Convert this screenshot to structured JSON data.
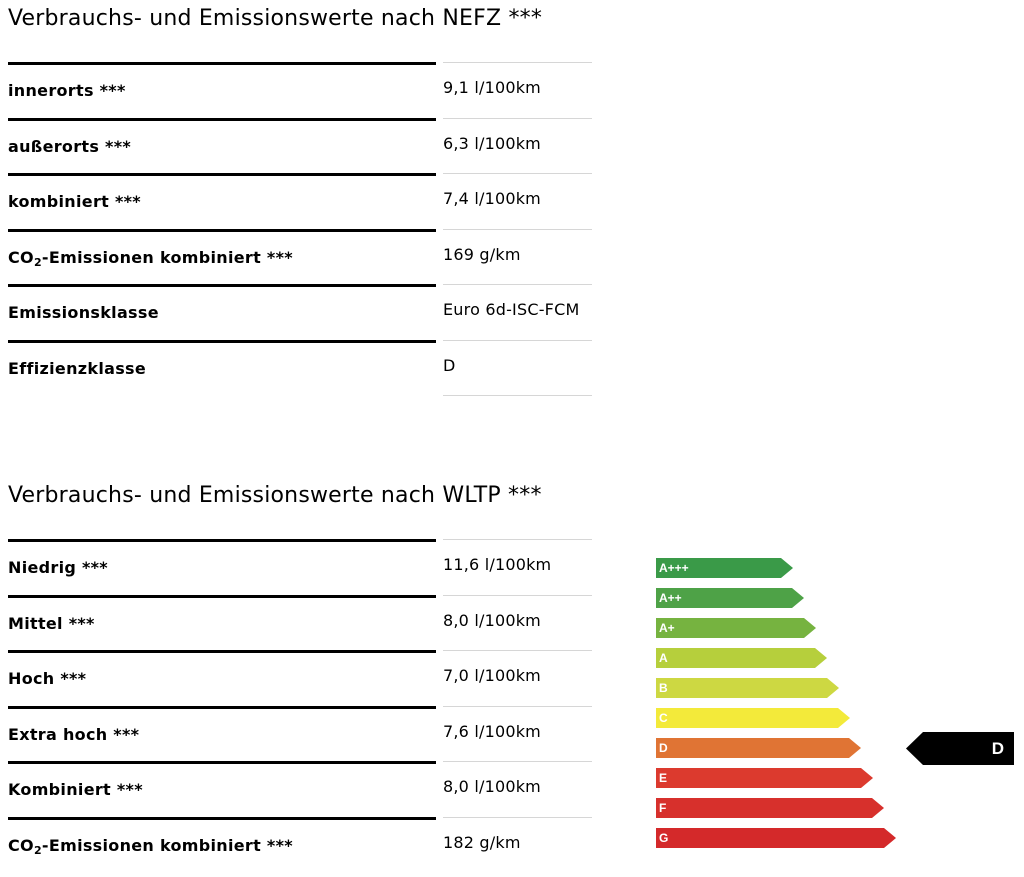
{
  "nefz": {
    "title": "Verbrauchs- und Emissionswerte nach NEFZ ***",
    "rows": [
      {
        "label": "innerorts ***",
        "value": "9,1 l/100km"
      },
      {
        "label": "außerorts ***",
        "value": "6,3 l/100km"
      },
      {
        "label": "kombiniert ***",
        "value": "7,4 l/100km"
      },
      {
        "label_pre": "CO",
        "label_sub": "2",
        "label_post": "-Emissionen kombiniert ***",
        "value": "169 g/km"
      },
      {
        "label": "Emissionsklasse",
        "value": "Euro 6d-ISC-FCM"
      },
      {
        "label": "Effizienzklasse",
        "value": "D"
      }
    ]
  },
  "wltp": {
    "title": "Verbrauchs- und Emissionswerte nach WLTP ***",
    "rows": [
      {
        "label": "Niedrig ***",
        "value": "11,6 l/100km"
      },
      {
        "label": "Mittel ***",
        "value": "8,0 l/100km"
      },
      {
        "label": "Hoch ***",
        "value": "7,0 l/100km"
      },
      {
        "label": "Extra hoch ***",
        "value": "7,6 l/100km"
      },
      {
        "label": "Kombiniert ***",
        "value": "8,0 l/100km"
      },
      {
        "label_pre": "CO",
        "label_sub": "2",
        "label_post": "-Emissionen kombiniert ***",
        "value": "182 g/km"
      }
    ]
  },
  "energy_label": {
    "classes": [
      {
        "label": "A+++",
        "color": "#3a9a48"
      },
      {
        "label": "A++",
        "color": "#4ea247"
      },
      {
        "label": "A+",
        "color": "#76b340"
      },
      {
        "label": "A",
        "color": "#b6cf3c"
      },
      {
        "label": "B",
        "color": "#cdd842"
      },
      {
        "label": "C",
        "color": "#f3ea3a"
      },
      {
        "label": "D",
        "color": "#e07434"
      },
      {
        "label": "E",
        "color": "#dc3a2e"
      },
      {
        "label": "F",
        "color": "#d7302c"
      },
      {
        "label": "G",
        "color": "#d4292a"
      }
    ],
    "selected": "D",
    "marker_color": "#000000"
  }
}
